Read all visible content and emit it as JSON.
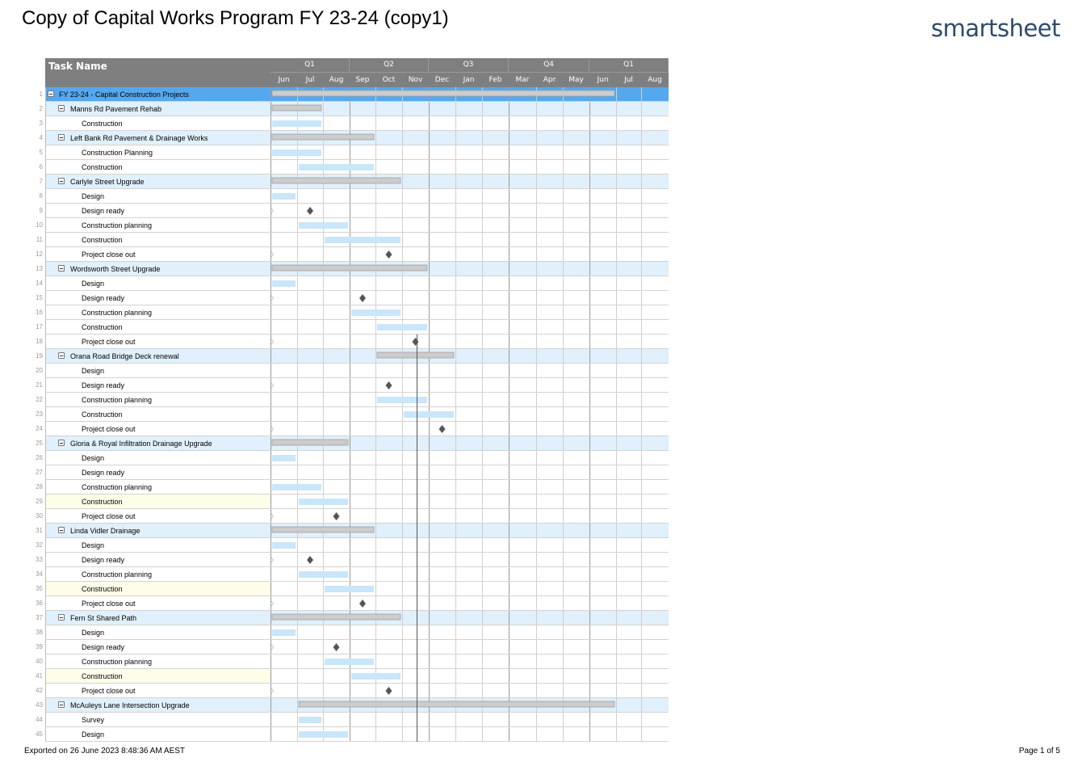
{
  "title": "Copy of Capital Works Program FY 23-24 (copy1)",
  "brand": "smartsheet",
  "footer": {
    "exported": "Exported on 26 June 2023 8:48:36 AM AEST",
    "page": "Page 1 of 5"
  },
  "header": {
    "task_name": "Task Name",
    "quarters": [
      "Q1",
      "Q2",
      "Q3",
      "Q4",
      "Q1"
    ],
    "months": [
      "Jun",
      "Jul",
      "Aug",
      "Sep",
      "Oct",
      "Nov",
      "Dec",
      "Jan",
      "Feb",
      "Mar",
      "Apr",
      "May",
      "Jun",
      "Jul",
      "Aug"
    ]
  },
  "colors": {
    "header": "#7f7f7f",
    "parent_row": "#e0f0fc",
    "top_row": "#55a8ee",
    "task_bar": "#c9e6fa",
    "summary_bar": "#cccccc",
    "milestone": "#555555",
    "highlight": "#fdfde8"
  },
  "rows": [
    {
      "num": "1",
      "name": "FY 23-24 - Capital Construction Projects",
      "level": 0,
      "type": "top",
      "bar": {
        "kind": "summary",
        "from": "Jun",
        "to": "Jun (2nd)"
      }
    },
    {
      "num": "2",
      "name": "Manns Rd Pavement Rehab",
      "level": 1,
      "type": "parent",
      "bar": {
        "kind": "summary",
        "from": "Jun",
        "to": "Jul"
      }
    },
    {
      "num": "3",
      "name": "Construction",
      "level": 2,
      "type": "task",
      "bar": {
        "kind": "task",
        "from": "Jun",
        "to": "Jul"
      }
    },
    {
      "num": "4",
      "name": "Left Bank Rd Pavement & Drainage Works",
      "level": 1,
      "type": "parent",
      "bar": {
        "kind": "summary",
        "from": "Jun",
        "to": "Sep"
      }
    },
    {
      "num": "5",
      "name": "Construction Planning",
      "level": 2,
      "type": "task",
      "bar": {
        "kind": "task",
        "from": "Jun",
        "to": "Jul"
      }
    },
    {
      "num": "6",
      "name": "Construction",
      "level": 2,
      "type": "task",
      "bar": {
        "kind": "task",
        "from": "Jul",
        "to": "Sep"
      }
    },
    {
      "num": "7",
      "name": "Carlyle Street Upgrade",
      "level": 1,
      "type": "parent",
      "bar": {
        "kind": "summary",
        "from": "Jun",
        "to": "Oct"
      }
    },
    {
      "num": "8",
      "name": "Design",
      "level": 2,
      "type": "task",
      "bar": {
        "kind": "task",
        "from": "Jun",
        "to": "Jun"
      }
    },
    {
      "num": "9",
      "name": "Design ready",
      "level": 2,
      "type": "task",
      "bar": {
        "kind": "milestone",
        "at": "Jul"
      }
    },
    {
      "num": "10",
      "name": "Construction planning",
      "level": 2,
      "type": "task",
      "bar": {
        "kind": "task",
        "from": "Jul",
        "to": "Aug"
      }
    },
    {
      "num": "11",
      "name": "Construction",
      "level": 2,
      "type": "task",
      "bar": {
        "kind": "task",
        "from": "Aug",
        "to": "Oct"
      }
    },
    {
      "num": "12",
      "name": "Project close out",
      "level": 2,
      "type": "task",
      "bar": {
        "kind": "milestone",
        "at": "Oct"
      }
    },
    {
      "num": "13",
      "name": "Wordsworth Street Upgrade",
      "level": 1,
      "type": "parent",
      "bar": {
        "kind": "summary",
        "from": "Jun",
        "to": "Nov"
      }
    },
    {
      "num": "14",
      "name": "Design",
      "level": 2,
      "type": "task",
      "bar": {
        "kind": "task",
        "from": "Jun",
        "to": "Jun"
      }
    },
    {
      "num": "15",
      "name": "Design ready",
      "level": 2,
      "type": "task",
      "bar": {
        "kind": "milestone",
        "at": "Sep"
      }
    },
    {
      "num": "16",
      "name": "Construction planning",
      "level": 2,
      "type": "task",
      "bar": {
        "kind": "task",
        "from": "Sep",
        "to": "Oct"
      }
    },
    {
      "num": "17",
      "name": "Construction",
      "level": 2,
      "type": "task",
      "bar": {
        "kind": "task",
        "from": "Oct",
        "to": "Nov"
      }
    },
    {
      "num": "18",
      "name": "Project close out",
      "level": 2,
      "type": "task",
      "bar": {
        "kind": "milestone",
        "at": "Nov"
      }
    },
    {
      "num": "19",
      "name": "Orana Road Bridge Deck renewal",
      "level": 1,
      "type": "parent",
      "bar": {
        "kind": "summary",
        "from": "Oct",
        "to": "Dec"
      }
    },
    {
      "num": "20",
      "name": "Design",
      "level": 2,
      "type": "task",
      "bar": null
    },
    {
      "num": "21",
      "name": "Design ready",
      "level": 2,
      "type": "task",
      "bar": {
        "kind": "milestone",
        "at": "Oct"
      }
    },
    {
      "num": "22",
      "name": "Construction planning",
      "level": 2,
      "type": "task",
      "bar": {
        "kind": "task",
        "from": "Oct",
        "to": "Nov"
      }
    },
    {
      "num": "23",
      "name": "Construction",
      "level": 2,
      "type": "task",
      "bar": {
        "kind": "task",
        "from": "Nov",
        "to": "Dec"
      }
    },
    {
      "num": "24",
      "name": "Project close out",
      "level": 2,
      "type": "task",
      "bar": {
        "kind": "milestone",
        "at": "Dec"
      }
    },
    {
      "num": "25",
      "name": "Gloria & Royal Infiltration Drainage Upgrade",
      "level": 1,
      "type": "parent",
      "bar": {
        "kind": "summary",
        "from": "Jun",
        "to": "Aug"
      }
    },
    {
      "num": "26",
      "name": "Design",
      "level": 2,
      "type": "task",
      "bar": {
        "kind": "task",
        "from": "Jun",
        "to": "Jun"
      }
    },
    {
      "num": "27",
      "name": "Design ready",
      "level": 2,
      "type": "task",
      "bar": null
    },
    {
      "num": "28",
      "name": "Construction planning",
      "level": 2,
      "type": "task",
      "bar": {
        "kind": "task",
        "from": "Jun",
        "to": "Jul"
      }
    },
    {
      "num": "29",
      "name": "Construction",
      "level": 2,
      "type": "highlight",
      "bar": {
        "kind": "task",
        "from": "Jul",
        "to": "Aug"
      }
    },
    {
      "num": "30",
      "name": "Project close out",
      "level": 2,
      "type": "task",
      "bar": {
        "kind": "milestone",
        "at": "Aug"
      }
    },
    {
      "num": "31",
      "name": "Linda Vidler Drainage",
      "level": 1,
      "type": "parent",
      "bar": {
        "kind": "summary",
        "from": "Jun",
        "to": "Sep"
      }
    },
    {
      "num": "32",
      "name": "Design",
      "level": 2,
      "type": "task",
      "bar": {
        "kind": "task",
        "from": "Jun",
        "to": "Jun"
      }
    },
    {
      "num": "33",
      "name": "Design ready",
      "level": 2,
      "type": "task",
      "bar": {
        "kind": "milestone",
        "at": "Jul"
      }
    },
    {
      "num": "34",
      "name": "Construction planning",
      "level": 2,
      "type": "task",
      "bar": {
        "kind": "task",
        "from": "Jul",
        "to": "Aug"
      }
    },
    {
      "num": "35",
      "name": "Construction",
      "level": 2,
      "type": "highlight",
      "bar": {
        "kind": "task",
        "from": "Aug",
        "to": "Sep"
      }
    },
    {
      "num": "36",
      "name": "Project close out",
      "level": 2,
      "type": "task",
      "bar": {
        "kind": "milestone",
        "at": "Sep"
      }
    },
    {
      "num": "37",
      "name": "Fern St Shared Path",
      "level": 1,
      "type": "parent",
      "bar": {
        "kind": "summary",
        "from": "Jun",
        "to": "Oct"
      }
    },
    {
      "num": "38",
      "name": "Design",
      "level": 2,
      "type": "task",
      "bar": {
        "kind": "task",
        "from": "Jun",
        "to": "Jun"
      }
    },
    {
      "num": "39",
      "name": "Design ready",
      "level": 2,
      "type": "task",
      "bar": {
        "kind": "milestone",
        "at": "Aug"
      }
    },
    {
      "num": "40",
      "name": "Construction planning",
      "level": 2,
      "type": "task",
      "bar": {
        "kind": "task",
        "from": "Aug",
        "to": "Sep"
      }
    },
    {
      "num": "41",
      "name": "Construction",
      "level": 2,
      "type": "highlight",
      "bar": {
        "kind": "task",
        "from": "Sep",
        "to": "Oct"
      }
    },
    {
      "num": "42",
      "name": "Project close out",
      "level": 2,
      "type": "task",
      "bar": {
        "kind": "milestone",
        "at": "Oct"
      }
    },
    {
      "num": "43",
      "name": "McAuleys Lane Intersection Upgrade",
      "level": 1,
      "type": "parent",
      "bar": {
        "kind": "summary",
        "from": "Jul",
        "to": "Jun (2nd)"
      }
    },
    {
      "num": "44",
      "name": "Survey",
      "level": 2,
      "type": "task",
      "bar": {
        "kind": "task",
        "from": "Jul",
        "to": "Jul"
      }
    },
    {
      "num": "45",
      "name": "Design",
      "level": 2,
      "type": "task",
      "bar": {
        "kind": "task",
        "from": "Jul",
        "to": "Aug"
      }
    }
  ]
}
